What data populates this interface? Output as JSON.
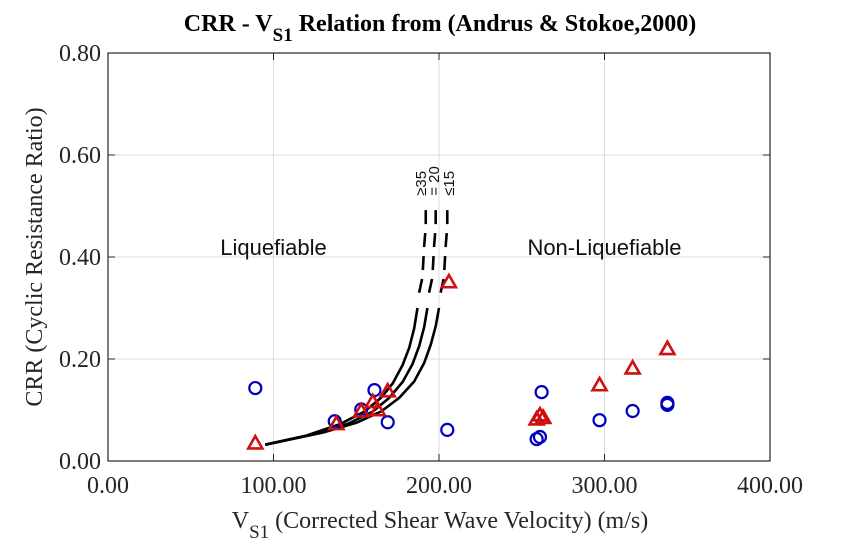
{
  "chart_data": {
    "type": "scatter",
    "title": "CRR - V",
    "title_sub": "S1",
    "title_rest": " Relation from (Andrus & Stokoe,2000)",
    "xlabel_main": "V",
    "xlabel_sub": "S1",
    "xlabel_rest": " (Corrected Shear Wave Velocity) (m/s)",
    "ylabel": "CRR (Cyclic Resistance Ratio)",
    "xlim": [
      0,
      400
    ],
    "ylim": [
      0,
      0.8
    ],
    "xticks": [
      0,
      100,
      200,
      300,
      400
    ],
    "xtick_labels": [
      "0.00",
      "100.00",
      "200.00",
      "300.00",
      "400.00"
    ],
    "yticks": [
      0,
      0.2,
      0.4,
      0.6,
      0.8
    ],
    "ytick_labels": [
      "0.00",
      "0.20",
      "0.40",
      "0.60",
      "0.80"
    ],
    "grid": true,
    "annotations": [
      {
        "text": "Liquefiable",
        "x": 100,
        "y": 0.42
      },
      {
        "text": "Non-Liquefiable",
        "x": 300,
        "y": 0.42
      }
    ],
    "curve_labels": [
      {
        "text": "≥35",
        "x": 192,
        "y": 0.52
      },
      {
        "text": "= 20",
        "x": 200,
        "y": 0.52
      },
      {
        "text": "≤15",
        "x": 209,
        "y": 0.52
      }
    ],
    "curves": [
      {
        "name": "FC >= 35",
        "solid": [
          [
            95,
            0.032
          ],
          [
            120,
            0.05
          ],
          [
            140,
            0.072
          ],
          [
            155,
            0.097
          ],
          [
            165,
            0.124
          ],
          [
            172,
            0.152
          ],
          [
            178,
            0.188
          ],
          [
            182,
            0.222
          ],
          [
            185,
            0.26
          ],
          [
            187,
            0.3
          ]
        ],
        "dashed": [
          [
            188,
            0.33
          ],
          [
            190,
            0.36
          ],
          [
            191,
            0.42
          ],
          [
            192,
            0.46
          ],
          [
            192,
            0.5
          ]
        ]
      },
      {
        "name": "FC = 20",
        "solid": [
          [
            95,
            0.032
          ],
          [
            125,
            0.053
          ],
          [
            145,
            0.073
          ],
          [
            160,
            0.097
          ],
          [
            170,
            0.124
          ],
          [
            178,
            0.155
          ],
          [
            184,
            0.19
          ],
          [
            188,
            0.225
          ],
          [
            191,
            0.262
          ],
          [
            193,
            0.3
          ]
        ],
        "dashed": [
          [
            194,
            0.33
          ],
          [
            196,
            0.36
          ],
          [
            197,
            0.42
          ],
          [
            198,
            0.46
          ],
          [
            198,
            0.5
          ]
        ]
      },
      {
        "name": "FC <= 15",
        "solid": [
          [
            95,
            0.032
          ],
          [
            130,
            0.056
          ],
          [
            150,
            0.075
          ],
          [
            165,
            0.097
          ],
          [
            176,
            0.124
          ],
          [
            185,
            0.156
          ],
          [
            191,
            0.192
          ],
          [
            195,
            0.228
          ],
          [
            198,
            0.264
          ],
          [
            200,
            0.3
          ]
        ],
        "dashed": [
          [
            201,
            0.33
          ],
          [
            203,
            0.36
          ],
          [
            204,
            0.42
          ],
          [
            205,
            0.46
          ],
          [
            205,
            0.5
          ]
        ]
      }
    ],
    "series": [
      {
        "name": "circles",
        "marker": "circle",
        "color": "#0000c0",
        "points": [
          [
            89,
            0.143
          ],
          [
            137,
            0.078
          ],
          [
            161,
            0.139
          ],
          [
            153,
            0.101
          ],
          [
            169,
            0.076
          ],
          [
            205,
            0.061
          ],
          [
            262,
            0.135
          ],
          [
            259,
            0.043
          ],
          [
            261,
            0.047
          ],
          [
            297,
            0.08
          ],
          [
            317,
            0.098
          ],
          [
            338,
            0.114
          ],
          [
            338,
            0.11
          ]
        ]
      },
      {
        "name": "triangles",
        "marker": "triangle",
        "color": "#d01010",
        "points": [
          [
            89,
            0.035
          ],
          [
            138,
            0.073
          ],
          [
            153,
            0.098
          ],
          [
            160,
            0.116
          ],
          [
            163,
            0.1
          ],
          [
            169,
            0.137
          ],
          [
            206,
            0.351
          ],
          [
            259,
            0.082
          ],
          [
            261,
            0.09
          ],
          [
            263,
            0.085
          ],
          [
            297,
            0.149
          ],
          [
            317,
            0.182
          ],
          [
            338,
            0.22
          ]
        ]
      }
    ]
  }
}
